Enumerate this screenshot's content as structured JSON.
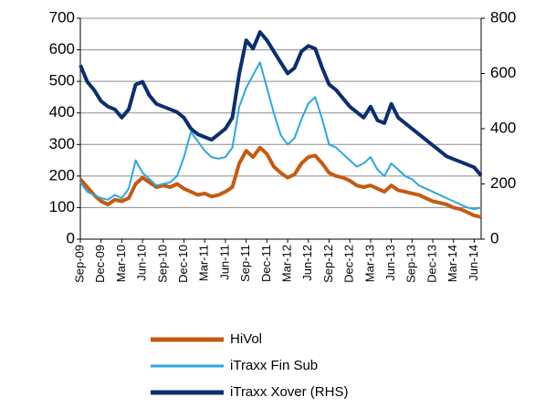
{
  "chart_data": {
    "type": "line",
    "categories": [
      "Sep-09",
      null,
      null,
      "Dec-09",
      null,
      null,
      "Mar-10",
      null,
      null,
      "Jun-10",
      null,
      null,
      "Sep-10",
      null,
      null,
      "Dec-10",
      null,
      null,
      "Mar-11",
      null,
      null,
      "Jun-11",
      null,
      null,
      "Sep-11",
      null,
      null,
      "Dec-11",
      null,
      null,
      "Mar-12",
      null,
      null,
      "Jun-12",
      null,
      null,
      "Sep-12",
      null,
      null,
      "Dec-12",
      null,
      null,
      "Mar-13",
      null,
      null,
      "Jun-13",
      null,
      null,
      "Sep-13",
      null,
      null,
      "Dec-13",
      null,
      null,
      "Mar-14",
      null,
      null,
      "Jun-14",
      null
    ],
    "series": [
      {
        "name": "HiVol",
        "color": "#c55a11",
        "values": [
          190,
          165,
          140,
          120,
          110,
          125,
          120,
          130,
          175,
          195,
          180,
          165,
          170,
          165,
          175,
          160,
          150,
          140,
          145,
          135,
          140,
          150,
          165,
          240,
          280,
          260,
          290,
          270,
          230,
          210,
          195,
          205,
          240,
          260,
          265,
          240,
          210,
          200,
          195,
          185,
          170,
          165,
          170,
          160,
          150,
          170,
          155,
          150,
          145,
          140,
          130,
          120,
          115,
          110,
          100,
          95,
          85,
          75,
          70
        ]
      },
      {
        "name": "iTraxx Fin Sub",
        "color": "#2ea6e0",
        "values": [
          180,
          150,
          140,
          130,
          125,
          140,
          130,
          160,
          250,
          210,
          190,
          170,
          175,
          180,
          200,
          260,
          340,
          310,
          280,
          260,
          255,
          260,
          290,
          420,
          480,
          520,
          560,
          480,
          400,
          330,
          300,
          320,
          380,
          430,
          450,
          380,
          300,
          290,
          270,
          250,
          230,
          240,
          260,
          220,
          200,
          240,
          220,
          200,
          190,
          170,
          160,
          150,
          140,
          130,
          120,
          110,
          100,
          95,
          100
        ]
      },
      {
        "name": "iTraxx Xover (RHS)",
        "color": "#0b2f6e",
        "axis": "y2",
        "values": [
          630,
          570,
          540,
          500,
          480,
          470,
          440,
          470,
          560,
          570,
          520,
          490,
          480,
          470,
          460,
          440,
          400,
          380,
          370,
          360,
          380,
          400,
          440,
          600,
          720,
          690,
          750,
          720,
          680,
          640,
          600,
          620,
          680,
          700,
          690,
          620,
          560,
          540,
          510,
          480,
          460,
          440,
          480,
          430,
          420,
          490,
          440,
          420,
          400,
          380,
          360,
          340,
          320,
          300,
          290,
          280,
          270,
          260,
          230
        ]
      }
    ],
    "ylim": [
      0,
      700
    ],
    "yticks": [
      0,
      100,
      200,
      300,
      400,
      500,
      600,
      700
    ],
    "y2lim": [
      0,
      800
    ],
    "y2ticks": [
      0,
      200,
      400,
      600,
      800
    ],
    "grid": true,
    "legend": "bottom"
  }
}
